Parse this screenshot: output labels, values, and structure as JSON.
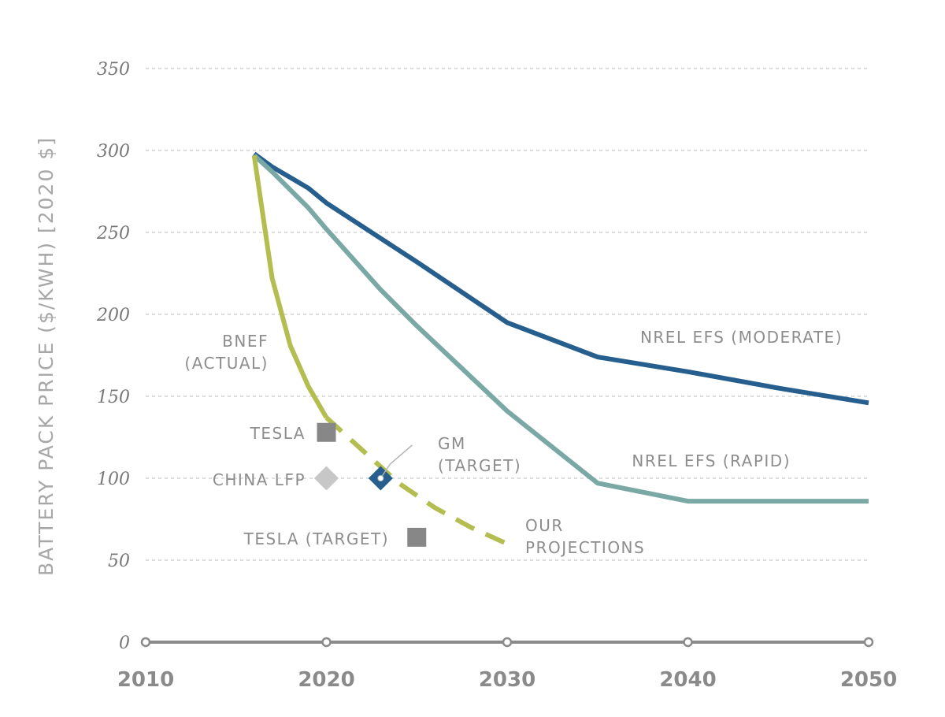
{
  "chart_data": {
    "type": "line",
    "title": "",
    "ylabel": "BATTERY PACK PRICE ($/KWH) [2020 $]",
    "xlabel": "",
    "xlim": [
      2010,
      2050
    ],
    "ylim": [
      0,
      350
    ],
    "x_ticks": [
      "2010",
      "2020",
      "2030",
      "2040",
      "2050"
    ],
    "y_ticks": [
      "0",
      "50",
      "100",
      "150",
      "200",
      "250",
      "300",
      "350"
    ],
    "grid": true,
    "colors": {
      "moderate": "#265f8e",
      "rapid": "#7aa8a5",
      "bnef": "#b4be50",
      "projection": "#b4be50",
      "tesla": "#878787",
      "china_lfp": "#c7c7c7",
      "gm": "#265f8e",
      "axis": "#8a8a8a"
    },
    "series": [
      {
        "key": "moderate",
        "name": "NREL EFS (MODERATE)",
        "style": "solid",
        "points": [
          [
            2016,
            298
          ],
          [
            2017,
            290
          ],
          [
            2019,
            277
          ],
          [
            2020,
            268
          ],
          [
            2025,
            232
          ],
          [
            2030,
            195
          ],
          [
            2035,
            174
          ],
          [
            2040,
            165
          ],
          [
            2045,
            155
          ],
          [
            2050,
            146
          ]
        ]
      },
      {
        "key": "rapid",
        "name": "NREL EFS (RAPID)",
        "style": "solid",
        "points": [
          [
            2016,
            297
          ],
          [
            2017,
            287
          ],
          [
            2019,
            265
          ],
          [
            2020,
            252
          ],
          [
            2023,
            215
          ],
          [
            2025,
            193
          ],
          [
            2030,
            141
          ],
          [
            2035,
            97
          ],
          [
            2040,
            86
          ],
          [
            2045,
            86
          ],
          [
            2050,
            86
          ]
        ]
      },
      {
        "key": "bnef",
        "name": "BNEF (ACTUAL)",
        "label_lines": [
          "BNEF",
          "(ACTUAL)"
        ],
        "style": "solid",
        "points": [
          [
            2016,
            297
          ],
          [
            2017,
            222
          ],
          [
            2018,
            181
          ],
          [
            2019,
            156
          ],
          [
            2020,
            137
          ]
        ]
      },
      {
        "key": "projection",
        "name": "OUR PROJECTIONS",
        "label_lines": [
          "OUR",
          "PROJECTIONS"
        ],
        "style": "dashed",
        "points": [
          [
            2020,
            137
          ],
          [
            2022,
            117
          ],
          [
            2024,
            97
          ],
          [
            2026,
            82
          ],
          [
            2028,
            70
          ],
          [
            2030,
            60
          ]
        ]
      }
    ],
    "markers": [
      {
        "key": "tesla",
        "name": "TESLA",
        "shape": "square",
        "x": 2020,
        "y": 128
      },
      {
        "key": "china_lfp",
        "name": "CHINA LFP",
        "shape": "diamond",
        "x": 2020,
        "y": 100
      },
      {
        "key": "gm",
        "name": "GM (TARGET)",
        "label_lines": [
          "GM",
          "(TARGET)"
        ],
        "shape": "diamond",
        "x": 2023,
        "y": 100
      },
      {
        "key": "tesla_target",
        "name": "TESLA (TARGET)",
        "shape": "square",
        "x": 2025,
        "y": 64
      }
    ]
  }
}
